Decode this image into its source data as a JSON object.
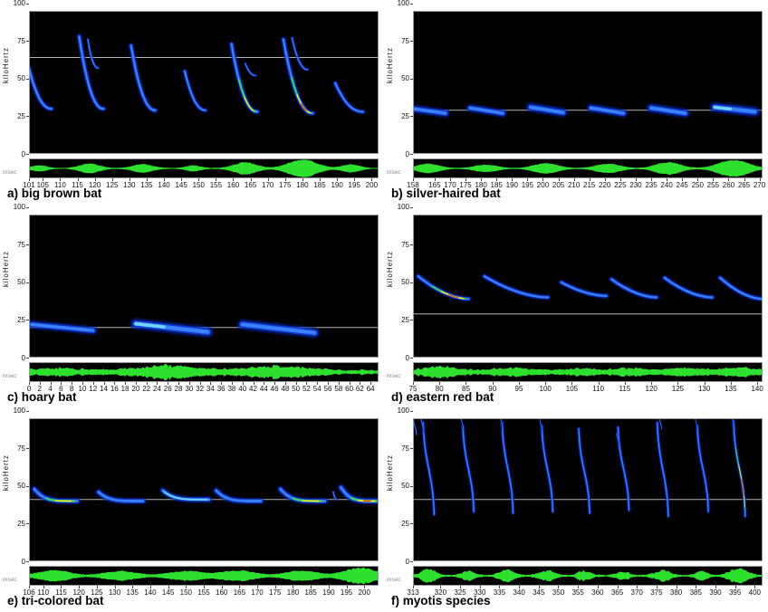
{
  "figure": {
    "name": "bat-echolocation-spectrograms",
    "ylabel": "kiloHertz",
    "xunit": "msec",
    "colors": {
      "background": "#ffffff",
      "plot_bg": "#000000",
      "wave_green": "#2ee02e",
      "ref_line": "#b4b4b4",
      "call_outer": "#001f9e",
      "call_mid": "#0b3ce8",
      "call_core": "#3b82ff",
      "call_bright": "#6fd3ff",
      "call_hot_green": "#38d957",
      "call_hot_yellow": "#ffe81a",
      "call_hot_red": "#ff3b00",
      "frame": "#999999",
      "text": "#111111"
    }
  },
  "chart_data": [
    {
      "type": "heatmap",
      "subtype": "spectrogram",
      "id": "a",
      "title": "a) big brown bat",
      "xlabel": "msec",
      "ylabel": "kiloHertz",
      "xlim": [
        101,
        202
      ],
      "ylim": [
        0,
        100
      ],
      "yticks": [
        100,
        75,
        50,
        25,
        0
      ],
      "xticks": [
        101,
        105,
        110,
        115,
        120,
        125,
        130,
        135,
        140,
        145,
        150,
        155,
        160,
        165,
        170,
        175,
        180,
        185,
        190,
        195,
        200
      ],
      "ref_line_khz": 64,
      "calls": [
        {
          "shape": "fm",
          "t0": 101,
          "t1": 107.5,
          "f0": 57,
          "f1": 30
        },
        {
          "shape": "fm",
          "t0": 115.5,
          "t1": 122.5,
          "f0": 78,
          "f1": 30
        },
        {
          "shape": "fm",
          "t0": 118,
          "t1": 121,
          "f0": 76,
          "f1": 57,
          "w": 0.55
        },
        {
          "shape": "fm",
          "t0": 130.5,
          "t1": 137.5,
          "f0": 72,
          "f1": 29
        },
        {
          "shape": "fm",
          "t0": 146,
          "t1": 152,
          "f0": 55,
          "f1": 29,
          "w": 0.85
        },
        {
          "shape": "fm",
          "t0": 159.5,
          "t1": 167,
          "f0": 73,
          "f1": 28,
          "level": "hot"
        },
        {
          "shape": "fm",
          "t0": 163.5,
          "t1": 166.5,
          "f0": 60,
          "f1": 52,
          "w": 0.5
        },
        {
          "shape": "fm",
          "t0": 174.5,
          "t1": 183,
          "f0": 76,
          "f1": 27,
          "level": "red"
        },
        {
          "shape": "fm",
          "t0": 177,
          "t1": 181.5,
          "f0": 77,
          "f1": 56,
          "w": 0.55
        },
        {
          "shape": "fm",
          "t0": 189.5,
          "t1": 197.5,
          "f0": 47,
          "f1": 28,
          "w": 0.9
        }
      ],
      "wave": {
        "noise": 0.05,
        "jitter": 0.18,
        "blobs": [
          [
            104,
            3,
            0.32
          ],
          [
            118.5,
            4,
            0.5
          ],
          [
            134,
            4,
            0.45
          ],
          [
            148.5,
            3,
            0.3
          ],
          [
            163.5,
            4.5,
            0.65
          ],
          [
            180,
            5.5,
            1.0
          ],
          [
            194,
            3.5,
            0.42
          ]
        ]
      }
    },
    {
      "type": "heatmap",
      "subtype": "spectrogram",
      "id": "b",
      "title": "b) silver-haired bat",
      "xlabel": "msec",
      "ylabel": "kiloHertz",
      "xlim": [
        158,
        271
      ],
      "ylim": [
        0,
        100
      ],
      "yticks": [
        100,
        75,
        50,
        25,
        0
      ],
      "xticks": [
        158,
        165,
        170,
        175,
        180,
        185,
        190,
        195,
        200,
        205,
        210,
        215,
        220,
        225,
        230,
        235,
        240,
        245,
        250,
        255,
        260,
        265,
        270
      ],
      "ref_line_khz": 29,
      "calls": [
        {
          "shape": "flat",
          "t0": 158,
          "t1": 168.5,
          "f0": 30,
          "f1": 27,
          "w": 1.15
        },
        {
          "shape": "flat",
          "t0": 176.5,
          "t1": 187,
          "f0": 30.5,
          "f1": 27,
          "w": 1.1
        },
        {
          "shape": "flat",
          "t0": 196,
          "t1": 206.5,
          "f0": 31,
          "f1": 27.5,
          "w": 1.25
        },
        {
          "shape": "flat",
          "t0": 215.5,
          "t1": 226,
          "f0": 30.5,
          "f1": 27,
          "w": 1.15
        },
        {
          "shape": "flat",
          "t0": 235,
          "t1": 246,
          "f0": 30.5,
          "f1": 27,
          "w": 1.25
        },
        {
          "shape": "flat",
          "t0": 255.5,
          "t1": 268.5,
          "f0": 31,
          "f1": 28,
          "w": 1.4,
          "level": "bright-start"
        }
      ],
      "wave": {
        "noise": 0.04,
        "jitter": 0.15,
        "blobs": [
          [
            163,
            5,
            0.5
          ],
          [
            181.5,
            5,
            0.4
          ],
          [
            201,
            5.5,
            0.55
          ],
          [
            221,
            5.5,
            0.5
          ],
          [
            240.5,
            5.5,
            0.68
          ],
          [
            261.5,
            6.5,
            0.95
          ]
        ]
      }
    },
    {
      "type": "heatmap",
      "subtype": "spectrogram",
      "id": "c",
      "title": "c) hoary bat",
      "xlabel": "msec",
      "ylabel": "kiloHertz",
      "xlim": [
        0,
        65.5
      ],
      "ylim": [
        0,
        100
      ],
      "yticks": [
        100,
        75,
        50,
        25,
        0
      ],
      "xticks": [
        0,
        2,
        4,
        6,
        8,
        10,
        12,
        14,
        16,
        18,
        20,
        22,
        24,
        26,
        28,
        30,
        32,
        34,
        36,
        38,
        40,
        42,
        44,
        46,
        48,
        50,
        52,
        54,
        56,
        58,
        60,
        62,
        64
      ],
      "ref_line_khz": 20,
      "calls": [
        {
          "shape": "flat",
          "t0": 0.5,
          "t1": 12,
          "f0": 22,
          "f1": 18,
          "w": 1.15
        },
        {
          "shape": "flat",
          "t0": 20,
          "t1": 33.5,
          "f0": 22.5,
          "f1": 17,
          "w": 1.5,
          "level": "bright-start"
        },
        {
          "shape": "flat",
          "t0": 40,
          "t1": 53.5,
          "f0": 22,
          "f1": 16.5,
          "w": 1.4
        }
      ],
      "wave": {
        "noise": 0.3,
        "jitter": 0.55,
        "blobs": [
          [
            5.5,
            5,
            0.22
          ],
          [
            26,
            7,
            0.5
          ],
          [
            46.5,
            7,
            0.45
          ]
        ]
      }
    },
    {
      "type": "heatmap",
      "subtype": "spectrogram",
      "id": "d",
      "title": "d) eastern red bat",
      "xlabel": "msec",
      "ylabel": "kiloHertz",
      "xlim": [
        75,
        141
      ],
      "ylim": [
        0,
        100
      ],
      "yticks": [
        100,
        75,
        50,
        25,
        0
      ],
      "xticks": [
        75,
        80,
        85,
        90,
        95,
        100,
        105,
        110,
        115,
        120,
        125,
        130,
        135,
        140
      ],
      "ref_line_khz": 29,
      "calls": [
        {
          "shape": "shallow",
          "t0": 76,
          "t1": 85.5,
          "f0": 54,
          "f1": 39,
          "level": "red"
        },
        {
          "shape": "shallow",
          "t0": 88.5,
          "t1": 100.5,
          "f0": 54,
          "f1": 40
        },
        {
          "shape": "shallow",
          "t0": 103,
          "t1": 111.5,
          "f0": 50,
          "f1": 41
        },
        {
          "shape": "shallow",
          "t0": 112.5,
          "t1": 121,
          "f0": 52,
          "f1": 40
        },
        {
          "shape": "shallow",
          "t0": 122.5,
          "t1": 131.5,
          "f0": 53,
          "f1": 40
        },
        {
          "shape": "shallow",
          "t0": 133,
          "t1": 141,
          "f0": 53,
          "f1": 39
        }
      ],
      "wave": {
        "noise": 0.3,
        "jitter": 0.5,
        "blobs": [
          [
            80,
            4,
            0.42
          ],
          [
            94,
            5,
            0.22
          ],
          [
            107,
            4,
            0.18
          ],
          [
            116,
            4,
            0.22
          ],
          [
            126,
            4,
            0.22
          ],
          [
            136,
            4,
            0.28
          ]
        ]
      }
    },
    {
      "type": "heatmap",
      "subtype": "spectrogram",
      "id": "e",
      "title": "e) tri-colored bat",
      "xlabel": "msec",
      "ylabel": "kiloHertz",
      "xlim": [
        106,
        204
      ],
      "ylim": [
        0,
        100
      ],
      "yticks": [
        100,
        75,
        50,
        25,
        0
      ],
      "xticks": [
        106,
        110,
        115,
        120,
        125,
        130,
        135,
        140,
        145,
        150,
        155,
        160,
        165,
        170,
        175,
        180,
        185,
        190,
        195,
        200
      ],
      "ref_line_khz": 41,
      "calls": [
        {
          "shape": "hook",
          "t0": 107.5,
          "t1": 119.5,
          "f0": 48,
          "f1": 40,
          "w": 1.2,
          "level": "hot"
        },
        {
          "shape": "hook",
          "t0": 125.5,
          "t1": 138,
          "f0": 46,
          "f1": 40,
          "w": 1.2
        },
        {
          "shape": "hook",
          "t0": 143.5,
          "t1": 156.5,
          "f0": 47,
          "f1": 41,
          "w": 1.2,
          "level": "bright"
        },
        {
          "shape": "hook",
          "t0": 158.5,
          "t1": 171,
          "f0": 47,
          "f1": 40,
          "w": 1.2
        },
        {
          "shape": "hook",
          "t0": 176.5,
          "t1": 189,
          "f0": 48,
          "f1": 40,
          "w": 1.2,
          "level": "hot"
        },
        {
          "shape": "fm",
          "t0": 191.3,
          "t1": 192.3,
          "f0": 46,
          "f1": 41,
          "w": 0.5
        },
        {
          "shape": "hook",
          "t0": 193.5,
          "t1": 204,
          "f0": 49,
          "f1": 40,
          "w": 1.3,
          "level": "red"
        }
      ],
      "wave": {
        "noise": 0.07,
        "jitter": 0.25,
        "blobs": [
          [
            113,
            6,
            0.6
          ],
          [
            131.5,
            6,
            0.5
          ],
          [
            150,
            6.5,
            0.5
          ],
          [
            164.5,
            6.5,
            0.55
          ],
          [
            182.5,
            6,
            0.55
          ],
          [
            199,
            6,
            0.85
          ]
        ]
      }
    },
    {
      "type": "heatmap",
      "subtype": "spectrogram",
      "id": "f",
      "title": "f) myotis species",
      "xlabel": "msec",
      "ylabel": "kiloHertz",
      "xlim": [
        313,
        402
      ],
      "ylim": [
        0,
        100
      ],
      "yticks": [
        100,
        75,
        50,
        25,
        0
      ],
      "xticks": [
        313,
        320,
        325,
        330,
        335,
        340,
        345,
        350,
        355,
        360,
        365,
        370,
        375,
        380,
        385,
        390,
        395,
        400
      ],
      "ref_line_khz": 41,
      "calls": [
        {
          "shape": "steep",
          "t0": 313.1,
          "t1": 313.9,
          "f0": 95,
          "f1": 84,
          "w": 0.5
        },
        {
          "shape": "steep",
          "t0": 315.6,
          "t1": 318.4,
          "f0": 92,
          "f1": 31
        },
        {
          "shape": "steep",
          "t0": 315,
          "t1": 315.7,
          "f0": 96,
          "f1": 86,
          "w": 0.5
        },
        {
          "shape": "steep",
          "t0": 325.7,
          "t1": 328.5,
          "f0": 90,
          "f1": 33
        },
        {
          "shape": "steep",
          "t0": 325.2,
          "t1": 325.9,
          "f0": 96,
          "f1": 87,
          "w": 0.45
        },
        {
          "shape": "steep",
          "t0": 335.7,
          "t1": 338.5,
          "f0": 92,
          "f1": 32
        },
        {
          "shape": "steep",
          "t0": 335.2,
          "t1": 335.9,
          "f0": 97,
          "f1": 88,
          "w": 0.45
        },
        {
          "shape": "steep",
          "t0": 345.8,
          "t1": 348.6,
          "f0": 90,
          "f1": 33
        },
        {
          "shape": "steep",
          "t0": 345.3,
          "t1": 346,
          "f0": 94,
          "f1": 86,
          "w": 0.4
        },
        {
          "shape": "steep",
          "t0": 355.2,
          "t1": 358,
          "f0": 88,
          "f1": 32
        },
        {
          "shape": "steep",
          "t0": 365.2,
          "t1": 368,
          "f0": 89,
          "f1": 34
        },
        {
          "shape": "steep",
          "t0": 364.8,
          "t1": 365.4,
          "f0": 85,
          "f1": 78,
          "w": 0.4
        },
        {
          "shape": "steep",
          "t0": 375.2,
          "t1": 378,
          "f0": 92,
          "f1": 30
        },
        {
          "shape": "steep",
          "t0": 375.6,
          "t1": 376.3,
          "f0": 97,
          "f1": 88,
          "w": 0.45
        },
        {
          "shape": "steep",
          "t0": 385.4,
          "t1": 388.2,
          "f0": 90,
          "f1": 33
        },
        {
          "shape": "steep",
          "t0": 384.9,
          "t1": 385.6,
          "f0": 95,
          "f1": 87,
          "w": 0.4
        },
        {
          "shape": "steep",
          "t0": 394.6,
          "t1": 397.6,
          "f0": 93,
          "f1": 30,
          "level": "red"
        },
        {
          "shape": "steep",
          "t0": 394.2,
          "t1": 394.9,
          "f0": 97,
          "f1": 88,
          "w": 0.45
        }
      ],
      "wave": {
        "noise": 0.12,
        "jitter": 0.5,
        "blobs": [
          [
            317,
            2.5,
            0.6
          ],
          [
            327,
            2,
            0.45
          ],
          [
            337,
            2.5,
            0.55
          ],
          [
            347,
            2.5,
            0.5
          ],
          [
            356.5,
            2,
            0.45
          ],
          [
            366.5,
            2,
            0.4
          ],
          [
            376.5,
            2.5,
            0.55
          ],
          [
            386.5,
            2,
            0.45
          ],
          [
            396,
            3,
            0.75
          ]
        ]
      }
    }
  ]
}
